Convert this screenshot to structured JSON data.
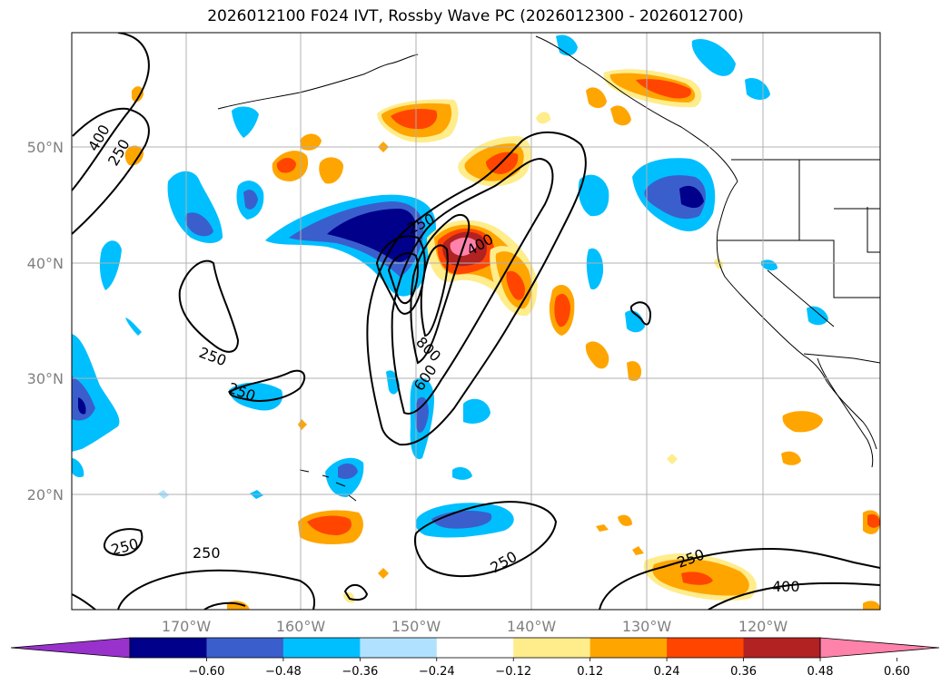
{
  "title": "2026012100 F024 IVT, Rossby Wave PC (2026012300 - 2026012700)",
  "lon_labels": [
    "170°W",
    "160°W",
    "150°W",
    "140°W",
    "130°W",
    "120°W"
  ],
  "lat_labels": [
    "50°N",
    "40°N",
    "30°N",
    "20°N"
  ],
  "colorbar": {
    "ticks": [
      "−0.60",
      "−0.48",
      "−0.36",
      "−0.24",
      "−0.12",
      "0.12",
      "0.24",
      "0.36",
      "0.48",
      "0.60"
    ],
    "colors": [
      "#9932CC",
      "#00008B",
      "#3A5FCD",
      "#00BFFF",
      "#B0E2FF",
      "#FFFFFF",
      "#FFEC8B",
      "#FFA500",
      "#FF4500",
      "#B22222",
      "#FF82AB"
    ]
  },
  "contour_labels": [
    "400",
    "250",
    "250",
    "400",
    "800",
    "600",
    "250",
    "250",
    "250",
    "250",
    "250",
    "250",
    "400"
  ]
}
